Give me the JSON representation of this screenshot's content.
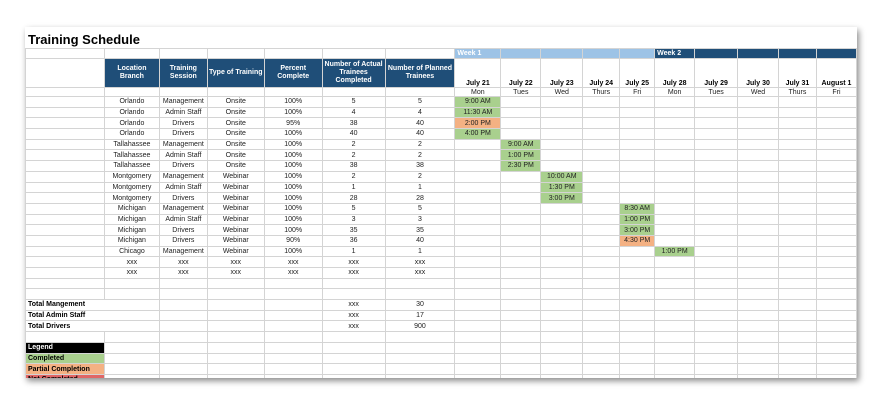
{
  "title": "Training Schedule",
  "weeks": [
    "Week 1",
    "Week 2"
  ],
  "headers": [
    "Location Branch",
    "Training Session",
    "Type of Training",
    "Percent Complete",
    "Number of Actual Trainees Completed",
    "Number of Planned Trainees"
  ],
  "days": [
    {
      "date": "July 21",
      "dow": "Mon"
    },
    {
      "date": "July 22",
      "dow": "Tues"
    },
    {
      "date": "July 23",
      "dow": "Wed"
    },
    {
      "date": "July 24",
      "dow": "Thurs"
    },
    {
      "date": "July 25",
      "dow": "Fri"
    },
    {
      "date": "July 28",
      "dow": "Mon"
    },
    {
      "date": "July 29",
      "dow": "Tues"
    },
    {
      "date": "July 30",
      "dow": "Wed"
    },
    {
      "date": "July 31",
      "dow": "Thurs"
    },
    {
      "date": "August 1",
      "dow": "Fri"
    }
  ],
  "rows": [
    {
      "loc": "Orlando",
      "session": "Management",
      "type": "Onsite",
      "pct": "100%",
      "actual": "5",
      "planned": "5",
      "day": 0,
      "time": "9:00 AM",
      "status": "completed"
    },
    {
      "loc": "Orlando",
      "session": "Admin Staff",
      "type": "Onsite",
      "pct": "100%",
      "actual": "4",
      "planned": "4",
      "day": 0,
      "time": "11:30 AM",
      "status": "completed"
    },
    {
      "loc": "Orlando",
      "session": "Drivers",
      "type": "Onsite",
      "pct": "95%",
      "actual": "38",
      "planned": "40",
      "day": 0,
      "time": "2:00 PM",
      "status": "partial"
    },
    {
      "loc": "Orlando",
      "session": "Drivers",
      "type": "Onsite",
      "pct": "100%",
      "actual": "40",
      "planned": "40",
      "day": 0,
      "time": "4:00 PM",
      "status": "completed"
    },
    {
      "loc": "Tallahassee",
      "session": "Management",
      "type": "Onsite",
      "pct": "100%",
      "actual": "2",
      "planned": "2",
      "day": 1,
      "time": "9:00 AM",
      "status": "completed"
    },
    {
      "loc": "Tallahassee",
      "session": "Admin Staff",
      "type": "Onsite",
      "pct": "100%",
      "actual": "2",
      "planned": "2",
      "day": 1,
      "time": "1:00 PM",
      "status": "completed"
    },
    {
      "loc": "Tallahassee",
      "session": "Drivers",
      "type": "Onsite",
      "pct": "100%",
      "actual": "38",
      "planned": "38",
      "day": 1,
      "time": "2:30 PM",
      "status": "completed"
    },
    {
      "loc": "Montgomery",
      "session": "Management",
      "type": "Webinar",
      "pct": "100%",
      "actual": "2",
      "planned": "2",
      "day": 2,
      "time": "10:00 AM",
      "status": "completed"
    },
    {
      "loc": "Montgomery",
      "session": "Admin Staff",
      "type": "Webinar",
      "pct": "100%",
      "actual": "1",
      "planned": "1",
      "day": 2,
      "time": "1:30 PM",
      "status": "completed"
    },
    {
      "loc": "Montgomery",
      "session": "Drivers",
      "type": "Webinar",
      "pct": "100%",
      "actual": "28",
      "planned": "28",
      "day": 2,
      "time": "3:00 PM",
      "status": "completed"
    },
    {
      "loc": "Michigan",
      "session": "Management",
      "type": "Webinar",
      "pct": "100%",
      "actual": "5",
      "planned": "5",
      "day": 4,
      "time": "8:30 AM",
      "status": "completed"
    },
    {
      "loc": "Michigan",
      "session": "Admin Staff",
      "type": "Webinar",
      "pct": "100%",
      "actual": "3",
      "planned": "3",
      "day": 4,
      "time": "1:00 PM",
      "status": "completed"
    },
    {
      "loc": "Michigan",
      "session": "Drivers",
      "type": "Webinar",
      "pct": "100%",
      "actual": "35",
      "planned": "35",
      "day": 4,
      "time": "3:00 PM",
      "status": "completed"
    },
    {
      "loc": "Michigan",
      "session": "Drivers",
      "type": "Webinar",
      "pct": "90%",
      "actual": "36",
      "planned": "40",
      "day": 4,
      "time": "4:30 PM",
      "status": "partial"
    },
    {
      "loc": "Chicago",
      "session": "Management",
      "type": "Webinar",
      "pct": "100%",
      "actual": "1",
      "planned": "1",
      "day": 5,
      "time": "1:00 PM",
      "status": "completed"
    },
    {
      "loc": "xxx",
      "session": "xxx",
      "type": "xxx",
      "pct": "xxx",
      "actual": "xxx",
      "planned": "xxx",
      "day": -1,
      "time": "",
      "status": ""
    },
    {
      "loc": "xxx",
      "session": "xxx",
      "type": "xxx",
      "pct": "xxx",
      "actual": "xxx",
      "planned": "xxx",
      "day": -1,
      "time": "",
      "status": ""
    }
  ],
  "totals": [
    {
      "label": "Total Mangement",
      "actual": "xxx",
      "planned": "30"
    },
    {
      "label": "Total Admin Staff",
      "actual": "xxx",
      "planned": "17"
    },
    {
      "label": "Total Drivers",
      "actual": "xxx",
      "planned": "900"
    }
  ],
  "legend": {
    "title": "Legend",
    "completed": "Completed",
    "partial": "Partial Completion",
    "not_completed": "Not Completed"
  },
  "colors": {
    "header_blue": "#1f4e78",
    "week1_blue": "#9dc3e6",
    "completed_green": "#a9d08e",
    "partial_orange": "#f4b183",
    "not_completed_red": "#e06666"
  }
}
